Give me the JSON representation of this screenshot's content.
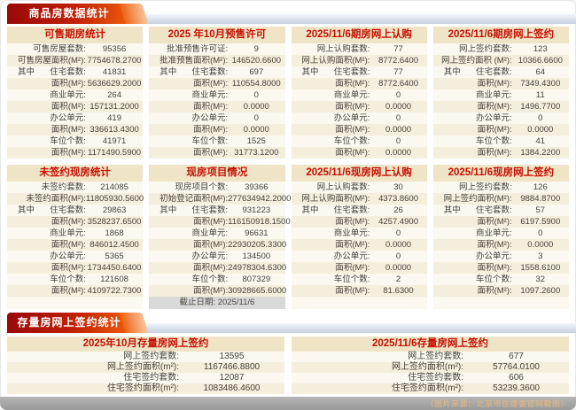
{
  "sections": [
    {
      "title": "商品房数据统计"
    },
    {
      "title": "存量房网上签约统计"
    }
  ],
  "panels": [
    {
      "title": "可售期房统计",
      "rows": [
        {
          "label": "可售房屋套数:",
          "value": "95356"
        },
        {
          "label": "可售房屋面积(M²):",
          "value": "7754678.2700"
        },
        {
          "prefix": "其中",
          "label": "住宅套数:",
          "value": "41831"
        },
        {
          "label": "面积(M²):",
          "value": "5636629.2000"
        },
        {
          "label": "商业单元:",
          "value": "264"
        },
        {
          "label": "面积(M²):",
          "value": "157131.2000"
        },
        {
          "label": "办公单元:",
          "value": "419"
        },
        {
          "label": "面积(M²):",
          "value": "336613.4300"
        },
        {
          "label": "车位个数:",
          "value": "41971"
        },
        {
          "label": "面积(M²):",
          "value": "1171490.5900"
        }
      ]
    },
    {
      "title": "2025 年10月预售许可",
      "rows": [
        {
          "label": "批准预售许可证:",
          "value": "9"
        },
        {
          "label": "批准预售面积(M²):",
          "value": "146520.6600"
        },
        {
          "prefix": "其中",
          "label": "住宅套数:",
          "value": "697"
        },
        {
          "label": "面积(M²):",
          "value": "110554.8000"
        },
        {
          "label": "商业单元:",
          "value": "0"
        },
        {
          "label": "面积(M²):",
          "value": "0.0000"
        },
        {
          "label": "办公单元:",
          "value": "0"
        },
        {
          "label": "面积(M²):",
          "value": "0.0000"
        },
        {
          "label": "车位个数:",
          "value": "1525"
        },
        {
          "label": "面积(M²):",
          "value": "31773.1200"
        }
      ]
    },
    {
      "title": "2025/11/6期房网上认购",
      "rows": [
        {
          "label": "网上认购套数:",
          "value": "77"
        },
        {
          "label": "网上认购面积(M²):",
          "value": "8772.6400"
        },
        {
          "prefix": "其中",
          "label": "住宅套数:",
          "value": "77"
        },
        {
          "label": "面积(M²):",
          "value": "8772.6400"
        },
        {
          "label": "商业单元:",
          "value": "0"
        },
        {
          "label": "面积(M²):",
          "value": "0.0000"
        },
        {
          "label": "办公单元:",
          "value": "0"
        },
        {
          "label": "面积(M²):",
          "value": "0.0000"
        },
        {
          "label": "车位个数:",
          "value": "0"
        },
        {
          "label": "面积(M²):",
          "value": "0.0000"
        }
      ]
    },
    {
      "title": "2025/11/6期房网上签约",
      "rows": [
        {
          "label": "网上签约套数:",
          "value": "123"
        },
        {
          "label": "网上签约面积 (M²):",
          "value": "10366.6600"
        },
        {
          "prefix": "其中",
          "label": "住宅套数:",
          "value": "64"
        },
        {
          "label": "面积(M²):",
          "value": "7349.4300"
        },
        {
          "label": "商业单元:",
          "value": "11"
        },
        {
          "label": "面积(M²):",
          "value": "1496.7700"
        },
        {
          "label": "办公单元:",
          "value": "0"
        },
        {
          "label": "面积(M²):",
          "value": "0.0000"
        },
        {
          "label": "车位个数:",
          "value": "41"
        },
        {
          "label": "面积(M²):",
          "value": "1384.2200"
        }
      ]
    },
    {
      "title": "未签约现房统计",
      "footer": "",
      "rows": [
        {
          "label": "未签约套数:",
          "value": "214085"
        },
        {
          "label": "未签约面积(M²):",
          "value": "11805930.5600"
        },
        {
          "prefix": "其中",
          "label": "住宅套数:",
          "value": "29863"
        },
        {
          "label": "面积(M²):",
          "value": "3528237.6500"
        },
        {
          "label": "商业单元:",
          "value": "1868"
        },
        {
          "label": "面积(M²):",
          "value": "846012.4500"
        },
        {
          "label": "办公单元:",
          "value": "5365"
        },
        {
          "label": "面积(M²):",
          "value": "1734450.6400"
        },
        {
          "label": "车位个数:",
          "value": "121608"
        },
        {
          "label": "面积(M²):",
          "value": "4109722.7300"
        }
      ]
    },
    {
      "title": "现房项目情况",
      "footer": "截止日期: 2025/11/6",
      "rows": [
        {
          "label": "现房项目个数:",
          "value": "39366"
        },
        {
          "label": "初始登记面积(M²):",
          "value": "277634942.2000"
        },
        {
          "prefix": "其中",
          "label": "住宅套数:",
          "value": "931223"
        },
        {
          "label": "面积(M²):",
          "value": "116150918.1500"
        },
        {
          "label": "商业单元:",
          "value": "96631"
        },
        {
          "label": "面积(M²):",
          "value": "22930205.3300"
        },
        {
          "label": "办公单元:",
          "value": "134500"
        },
        {
          "label": "面积(M²):",
          "value": "24978304.6300"
        },
        {
          "label": "车位个数:",
          "value": "807329"
        },
        {
          "label": "面积(M²):",
          "value": "30928665.6000"
        }
      ]
    },
    {
      "title": "2025/11/6现房网上认购",
      "footer": "",
      "rows": [
        {
          "label": "网上认购套数:",
          "value": "30"
        },
        {
          "label": "网上认购面积(M²):",
          "value": "4373.8600"
        },
        {
          "prefix": "其中",
          "label": "住宅套数:",
          "value": "26"
        },
        {
          "label": "面积(M²):",
          "value": "4257.4900"
        },
        {
          "label": "商业单元:",
          "value": "0"
        },
        {
          "label": "面积(M²):",
          "value": "0.0000"
        },
        {
          "label": "办公单元:",
          "value": "0"
        },
        {
          "label": "面积(M²):",
          "value": "0.0000"
        },
        {
          "label": "车位个数:",
          "value": "2"
        },
        {
          "label": "面积(M²):",
          "value": "81.6300"
        }
      ]
    },
    {
      "title": "2025/11/6现房网上签约",
      "footer": "",
      "rows": [
        {
          "label": "网上签约套数:",
          "value": "126"
        },
        {
          "label": "网上签约面积(M²):",
          "value": "9884.8700"
        },
        {
          "prefix": "其中",
          "label": "住宅套数:",
          "value": "57"
        },
        {
          "label": "面积(M²):",
          "value": "6197.5900"
        },
        {
          "label": "商业单元:",
          "value": "0"
        },
        {
          "label": "面积(M²):",
          "value": "0.0000"
        },
        {
          "label": "办公单元:",
          "value": "3"
        },
        {
          "label": "面积(M²):",
          "value": "1558.6100"
        },
        {
          "label": "车位个数:",
          "value": "32"
        },
        {
          "label": "面积(M²):",
          "value": "1097.2600"
        }
      ]
    }
  ],
  "stock_panels": [
    {
      "title": "2025年10月存量房网上签约",
      "rows": [
        {
          "label": "网上签约套数:",
          "value": "13595"
        },
        {
          "label": "网上签约面积(m²):",
          "value": "1167466.8800"
        },
        {
          "label": "住宅签约套数:",
          "value": "12087"
        },
        {
          "label": "住宅签约面积(m²):",
          "value": "1083486.4600"
        }
      ]
    },
    {
      "title": "2025/11/6存量房网上签约",
      "rows": [
        {
          "label": "网上签约套数:",
          "value": "677"
        },
        {
          "label": "网上签约面积(m²):",
          "value": "57764.0100"
        },
        {
          "label": "住宅签约套数:",
          "value": "606"
        },
        {
          "label": "住宅签约面积(m²):",
          "value": "53239.3600"
        }
      ]
    }
  ],
  "caption": "（图片来源：北京市住建委官网截图）",
  "colors": {
    "banner_gradient_start": "#990808",
    "banner_gradient_end": "#ee5e0b",
    "banner_bar": "#c7d1e0",
    "panel_header_bg": "#f0e4c6",
    "row_light_bg": "#fbf8ef",
    "row_dark_bg": "#f4eedd",
    "title_red": "#c40f00",
    "footer_gray_bg": "#d9d9d9",
    "caption_bar_bg": "#9b9b9b",
    "caption_text": "#e9b97e"
  }
}
